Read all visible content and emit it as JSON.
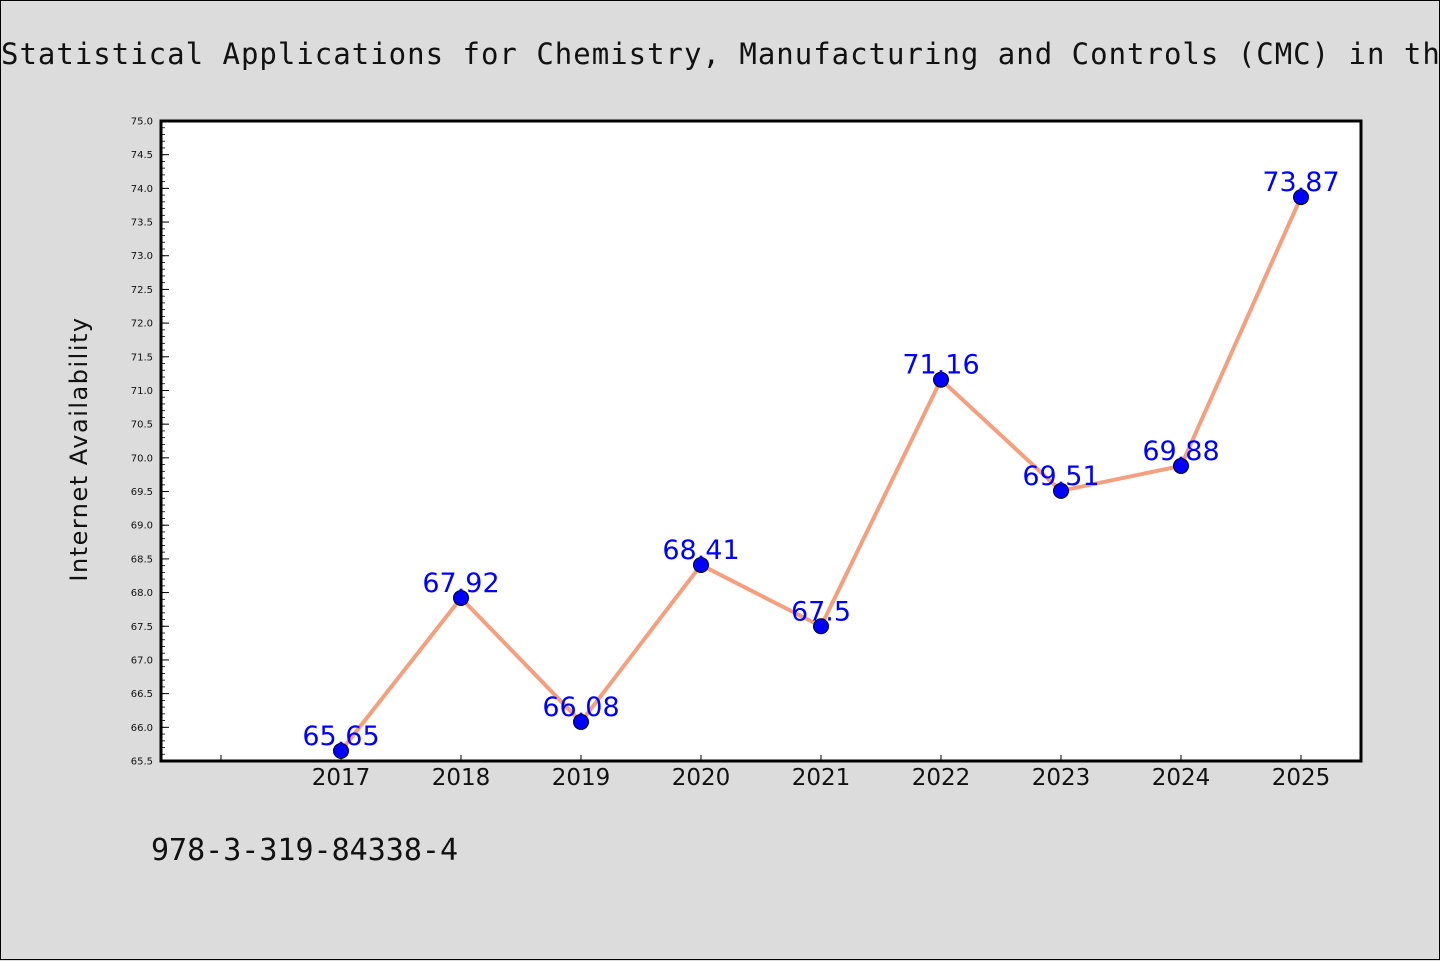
{
  "chart_data": {
    "type": "line",
    "title": "Statistical Applications for Chemistry, Manufacturing and Controls (CMC) in the",
    "xlabel": "",
    "ylabel": "Internet Availability",
    "categories": [
      "2017",
      "2018",
      "2019",
      "2020",
      "2021",
      "2022",
      "2023",
      "2024",
      "2025"
    ],
    "series": [
      {
        "values": [
          65.65,
          67.92,
          66.08,
          68.41,
          67.5,
          71.16,
          69.51,
          69.88,
          73.87
        ],
        "data_labels": [
          "65.65",
          "67.92",
          "66.08",
          "68.41",
          "67.5",
          "71.16",
          "69.51",
          "69.88",
          "73.87"
        ]
      }
    ],
    "ylim": [
      65.5,
      75.0
    ],
    "yticks": [
      "65.5",
      "66.0",
      "66.5",
      "67.0",
      "67.5",
      "68.0",
      "68.5",
      "69.0",
      "69.5",
      "70.0",
      "70.5",
      "71.0",
      "71.5",
      "72.0",
      "72.5",
      "73.0",
      "73.5",
      "74.0",
      "74.5",
      "75.0"
    ],
    "grid": false,
    "legend": "none",
    "line_color": "#f4a07f",
    "marker_color": "#0000ff",
    "label_color": "#0000ff",
    "plot_background": "#ffffff",
    "figure_background": "#dcdcdc"
  },
  "footnote": "978-3-319-84338-4"
}
